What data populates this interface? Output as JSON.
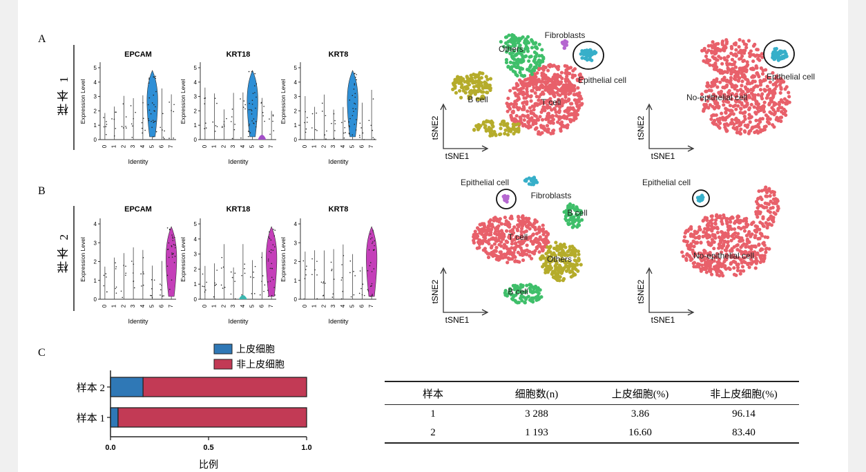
{
  "panels": {
    "a_letter": "A",
    "b_letter": "B",
    "c_letter": "C",
    "sample1_label": "样本 1",
    "sample2_label": "样本 2"
  },
  "violin": {
    "genes": [
      "EPCAM",
      "KRT18",
      "KRT8"
    ],
    "ylabel": "Expression Level",
    "xlabel": "Identity",
    "clusters": [
      "0",
      "1",
      "2",
      "3",
      "4",
      "5",
      "6",
      "7"
    ],
    "sample1": {
      "color": "#2e8fd6",
      "accent_color": "#a24fc8",
      "yticks": [
        [
          "0",
          "1",
          "2",
          "3",
          "4",
          "5"
        ],
        [
          "0",
          "1",
          "2",
          "3",
          "4",
          "5"
        ],
        [
          "0",
          "1",
          "2",
          "3",
          "4",
          "5"
        ]
      ],
      "highlight_cluster": "5"
    },
    "sample2": {
      "color": "#c43fb9",
      "accent_color": "#3bb7b0",
      "yticks": [
        [
          "0",
          "1",
          "2",
          "3",
          "4"
        ],
        [
          "0",
          "1",
          "2",
          "3",
          "4",
          "5"
        ],
        [
          "0",
          "1",
          "2",
          "3",
          "4"
        ]
      ],
      "highlight_cluster": "7"
    }
  },
  "tsne": {
    "x_axis": "tSNE1",
    "y_axis": "tSNE2",
    "sample1_clusters": {
      "others": "Others",
      "fibroblasts": "Fibroblasts",
      "epithelial": "Epithelial cell",
      "b_cell": "B cell",
      "t_cell": "T cell"
    },
    "sample1_binary": {
      "epithelial": "Epithelial cell",
      "non_epithelial": "No-epithelial cell"
    },
    "sample2_clusters": {
      "epithelial": "Epithelial cell",
      "fibroblasts": "Fibroblasts",
      "b_cell_top": "B cell",
      "t_cell": "T cell",
      "others": "Others",
      "b_cell_bottom": "B cell"
    },
    "sample2_binary": {
      "epithelial": "Epithelial cell",
      "non_epithelial": "No-epithelial cell"
    },
    "colors": {
      "t_cell": "#e8606a",
      "b_cell": "#b5ac2b",
      "others": "#3fbf6a",
      "epithelial": "#37afc9",
      "fibroblasts": "#b567d0"
    }
  },
  "chart_data": {
    "type": "bar",
    "orientation": "horizontal",
    "stacked": true,
    "categories": [
      "样本 2",
      "样本 1"
    ],
    "series": [
      {
        "name": "上皮细胞",
        "values": [
          0.166,
          0.0386
        ],
        "color": "#2f78b6"
      },
      {
        "name": "非上皮细胞",
        "values": [
          0.834,
          0.9614
        ],
        "color": "#c23a55"
      }
    ],
    "xlabel": "比例",
    "xticks": [
      "0.0",
      "0.5",
      "1.0"
    ],
    "xlim": [
      0,
      1
    ],
    "legend": "top"
  },
  "table": {
    "headers": [
      "样本",
      "细胞数(n)",
      "上皮细胞(%)",
      "非上皮细胞(%)"
    ],
    "rows": [
      [
        "1",
        "3 288",
        "3.86",
        "96.14"
      ],
      [
        "2",
        "1 193",
        "16.60",
        "83.40"
      ]
    ]
  }
}
